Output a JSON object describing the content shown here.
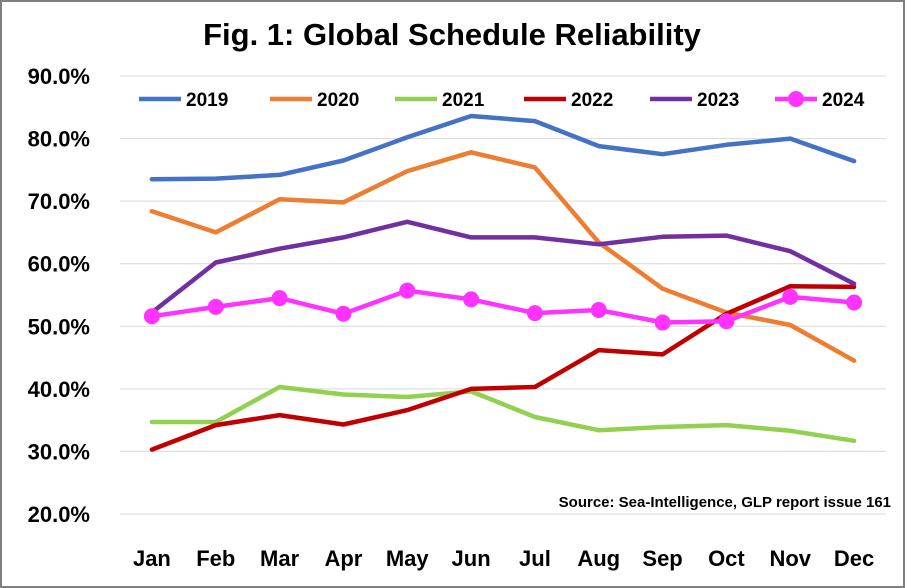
{
  "chart_data": {
    "type": "line",
    "title": "Fig. 1: Global Schedule Reliability",
    "categories": [
      "Jan",
      "Feb",
      "Mar",
      "Apr",
      "May",
      "Jun",
      "Jul",
      "Aug",
      "Sep",
      "Oct",
      "Nov",
      "Dec"
    ],
    "ylim": [
      0.2,
      0.9
    ],
    "yticks": [
      0.2,
      0.3,
      0.4,
      0.5,
      0.6,
      0.7,
      0.8,
      0.9
    ],
    "ytick_labels": [
      "20.0%",
      "30.0%",
      "40.0%",
      "50.0%",
      "60.0%",
      "70.0%",
      "80.0%",
      "90.0%"
    ],
    "grid": "horizontal",
    "legend_position": "top",
    "annotation": "Source: Sea-Intelligence, GLP report issue 161",
    "series": [
      {
        "name": "2019",
        "color": "#4472c4",
        "markers": false,
        "values": [
          0.735,
          0.736,
          0.742,
          0.765,
          0.802,
          0.836,
          0.828,
          0.788,
          0.775,
          0.79,
          0.8,
          0.764
        ]
      },
      {
        "name": "2020",
        "color": "#ed7d31",
        "markers": false,
        "values": [
          0.684,
          0.65,
          0.703,
          0.698,
          0.748,
          0.778,
          0.754,
          0.634,
          0.56,
          0.522,
          0.502,
          0.445
        ]
      },
      {
        "name": "2021",
        "color": "#92d050",
        "markers": false,
        "values": [
          0.347,
          0.347,
          0.403,
          0.391,
          0.387,
          0.396,
          0.355,
          0.334,
          0.339,
          0.342,
          0.333,
          0.317
        ]
      },
      {
        "name": "2022",
        "color": "#c00000",
        "markers": false,
        "values": [
          0.303,
          0.342,
          0.358,
          0.343,
          0.366,
          0.4,
          0.403,
          0.462,
          0.455,
          0.52,
          0.564,
          0.563
        ]
      },
      {
        "name": "2023",
        "color": "#7030a0",
        "markers": false,
        "values": [
          0.522,
          0.602,
          0.624,
          0.642,
          0.667,
          0.642,
          0.642,
          0.631,
          0.643,
          0.645,
          0.62,
          0.568
        ]
      },
      {
        "name": "2024",
        "color": "#ff33ff",
        "markers": true,
        "values": [
          0.516,
          0.531,
          0.545,
          0.52,
          0.557,
          0.543,
          0.521,
          0.526,
          0.506,
          0.508,
          0.547,
          0.538
        ]
      }
    ]
  }
}
